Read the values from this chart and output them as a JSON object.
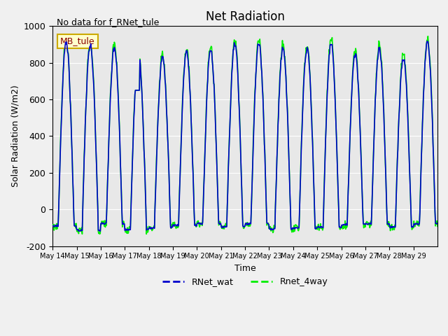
{
  "title": "Net Radiation",
  "xlabel": "Time",
  "ylabel": "Solar Radiation (W/m2)",
  "ylim": [
    -200,
    1000
  ],
  "annotation_text": "No data for f_RNet_tule",
  "legend_label_box": "MB_tule",
  "series": [
    "RNet_wat",
    "Rnet_4way"
  ],
  "colors": [
    "#0000cc",
    "#00ee00"
  ],
  "background_color": "#e8e8e8",
  "grid_color": "#ffffff",
  "x_tick_labels": [
    "May 14",
    "May 15",
    "May 16",
    "May 17",
    "May 18",
    "May 19",
    "May 20",
    "May 21",
    "May 22",
    "May 23",
    "May 24",
    "May 25",
    "May 26",
    "May 27",
    "May 28",
    "May 29"
  ],
  "yticks": [
    -200,
    0,
    200,
    400,
    600,
    800,
    1000
  ]
}
